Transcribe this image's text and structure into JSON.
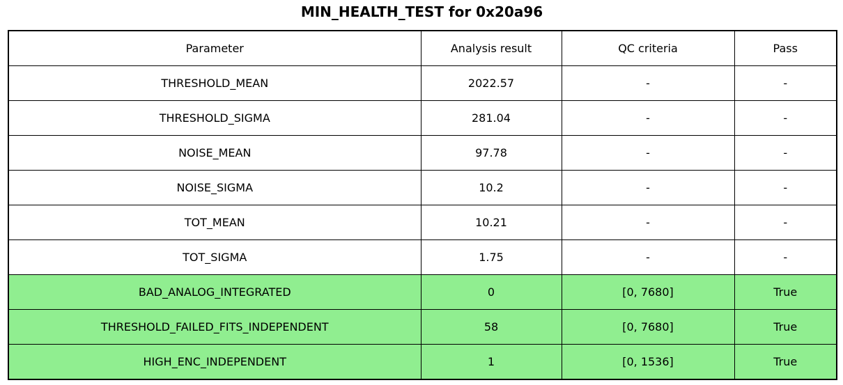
{
  "title": "MIN_HEALTH_TEST for 0x20a96",
  "chart_data": {
    "type": "table",
    "title": "MIN_HEALTH_TEST for 0x20a96",
    "columns": [
      "Parameter",
      "Analysis result",
      "QC criteria",
      "Pass"
    ],
    "rows": [
      {
        "cells": [
          "THRESHOLD_MEAN",
          "2022.57",
          "-",
          "-"
        ],
        "highlight": false
      },
      {
        "cells": [
          "THRESHOLD_SIGMA",
          "281.04",
          "-",
          "-"
        ],
        "highlight": false
      },
      {
        "cells": [
          "NOISE_MEAN",
          "97.78",
          "-",
          "-"
        ],
        "highlight": false
      },
      {
        "cells": [
          "NOISE_SIGMA",
          "10.2",
          "-",
          "-"
        ],
        "highlight": false
      },
      {
        "cells": [
          "TOT_MEAN",
          "10.21",
          "-",
          "-"
        ],
        "highlight": false
      },
      {
        "cells": [
          "TOT_SIGMA",
          "1.75",
          "-",
          "-"
        ],
        "highlight": false
      },
      {
        "cells": [
          "BAD_ANALOG_INTEGRATED",
          "0",
          "[0, 7680]",
          "True"
        ],
        "highlight": true
      },
      {
        "cells": [
          "THRESHOLD_FAILED_FITS_INDEPENDENT",
          "58",
          "[0, 7680]",
          "True"
        ],
        "highlight": true
      },
      {
        "cells": [
          "HIGH_ENC_INDEPENDENT",
          "1",
          "[0, 1536]",
          "True"
        ],
        "highlight": true
      }
    ]
  },
  "colors": {
    "pass_green": "#90EE90",
    "border": "#000000",
    "background": "#ffffff"
  }
}
